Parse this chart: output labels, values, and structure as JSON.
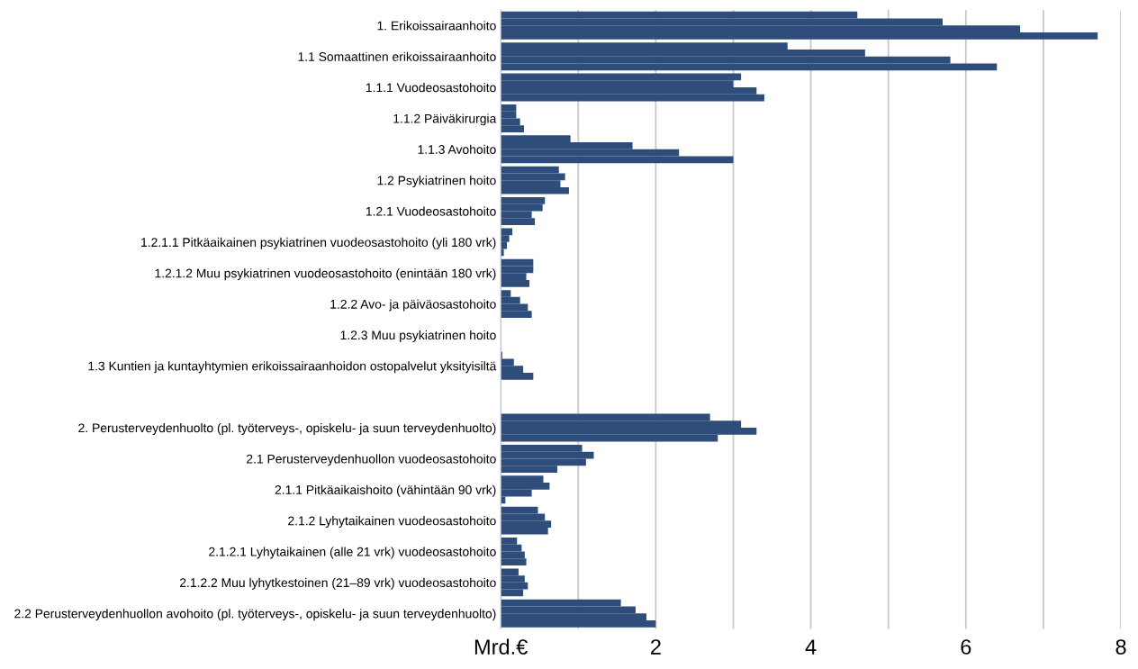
{
  "chart_data": {
    "type": "bar",
    "orientation": "horizontal",
    "categories": [
      "1. Erikoissairaanhoito",
      "1.1 Somaattinen erikoissairaanhoito",
      "1.1.1 Vuodeosastohoito",
      "1.1.2 Päiväkirurgia",
      "1.1.3 Avohoito",
      "1.2 Psykiatrinen hoito",
      "1.2.1 Vuodeosastohoito",
      "1.2.1.1 Pitkäaikainen psykiatrinen vuodeosastohoito (yli 180 vrk)",
      "1.2.1.2 Muu psykiatrinen vuodeosastohoito (enintään 180 vrk)",
      "1.2.2 Avo- ja päiväosastohoito",
      "1.2.3 Muu psykiatrinen hoito",
      "1.3 Kuntien ja kuntayhtymien erikoissairaanhoidon ostopalvelut yksityisiltä",
      null,
      "2. Perusterveydenhuolto (pl. työterveys-, opiskelu- ja suun terveydenhuolto)",
      "2.1 Perusterveydenhuollon vuodeosastohoito",
      "2.1.1 Pitkäaikaishoito (vähintään 90 vrk)",
      "2.1.2 Lyhytaikainen vuodeosastohoito",
      "2.1.2.1 Lyhytaikainen (alle 21 vrk) vuodeosastohoito",
      "2.1.2.2 Muu lyhytkestoinen (21–89 vrk) vuodeosastohoito",
      "2.2 Perusterveydenhuollon avohoito (pl. työterveys-, opiskelu- ja suun terveydenhuolto)"
    ],
    "series": [
      {
        "color": "#2e4d7b",
        "values": [
          4.6,
          3.7,
          3.1,
          0.2,
          0.9,
          0.75,
          0.57,
          0.15,
          0.42,
          0.13,
          null,
          0.02,
          null,
          2.7,
          1.05,
          0.55,
          0.48,
          0.21,
          0.23,
          1.55
        ]
      },
      {
        "color": "#2e4d7b",
        "values": [
          5.7,
          4.7,
          3.0,
          0.2,
          1.7,
          0.83,
          0.54,
          0.11,
          0.42,
          0.25,
          null,
          0.17,
          null,
          3.1,
          1.2,
          0.63,
          0.57,
          0.27,
          0.31,
          1.74
        ]
      },
      {
        "color": "#2e4d7b",
        "values": [
          6.7,
          5.8,
          3.3,
          0.25,
          2.3,
          0.77,
          0.4,
          0.08,
          0.33,
          0.35,
          null,
          0.29,
          null,
          3.3,
          1.1,
          0.4,
          0.65,
          0.31,
          0.35,
          1.88
        ]
      },
      {
        "color": "#2e4d7b",
        "values": [
          7.7,
          6.4,
          3.4,
          0.3,
          3.0,
          0.88,
          0.44,
          0.04,
          0.37,
          0.4,
          null,
          0.42,
          null,
          2.8,
          0.73,
          0.06,
          0.61,
          0.33,
          0.29,
          2.0
        ]
      }
    ],
    "xlim": [
      0,
      8
    ],
    "xticks": [
      {
        "value": 0,
        "label": "Mrd.€"
      },
      {
        "value": 1,
        "label": null
      },
      2,
      {
        "value": 3,
        "label": null
      },
      4,
      {
        "value": 5,
        "label": null
      },
      6,
      {
        "value": 7,
        "label": null
      },
      8
    ],
    "grid": "x",
    "legend": false
  }
}
